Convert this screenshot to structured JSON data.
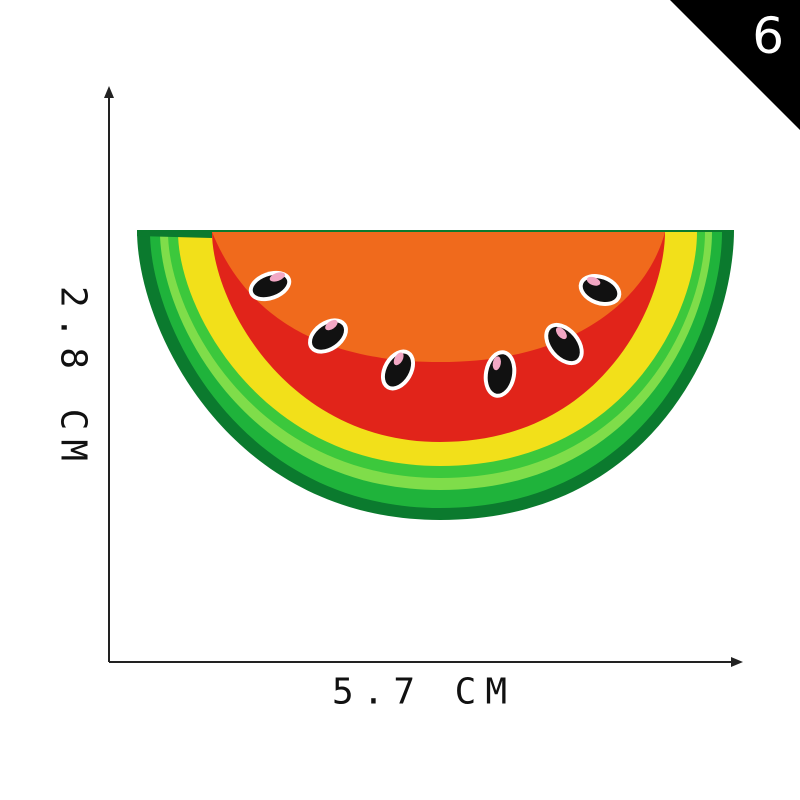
{
  "badge": {
    "number": "6",
    "color": "#000000"
  },
  "dimensions": {
    "height_label": "2.8 CM",
    "width_label": "5.7 CM"
  },
  "patch": {
    "subject": "watermelon-slice",
    "colors": {
      "rind_dark": "#0b7a2e",
      "rind_mid": "#1fb33b",
      "rind_light": "#7fdd4a",
      "rind_yellow": "#f2e01a",
      "flesh_red": "#e1241a",
      "flesh_orange": "#f06a1c",
      "seed": "#111111",
      "seed_highlight": "#f2a7c4"
    }
  }
}
